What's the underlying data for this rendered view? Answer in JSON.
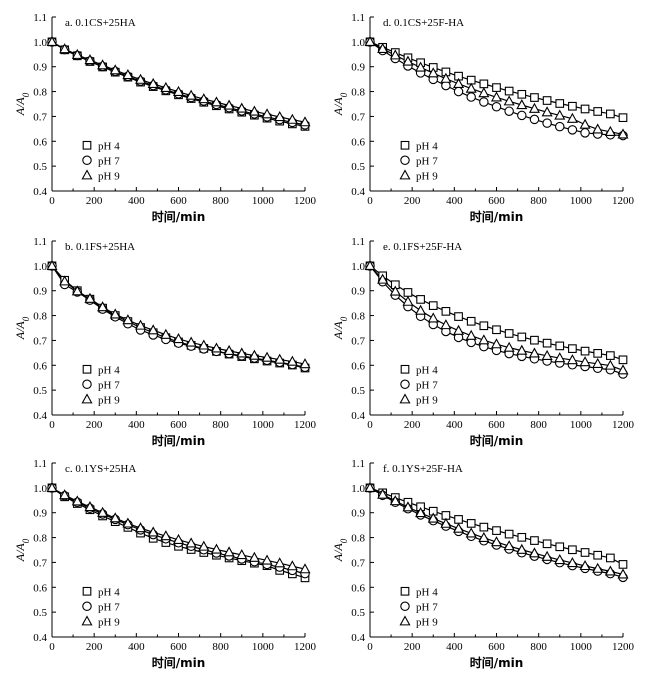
{
  "chart_data": [
    {
      "type": "scatter",
      "panel": "a",
      "title": "a. 0.1CS+25HA",
      "xlabel": "时间/min",
      "ylabel": "A/A0",
      "xlim": [
        0,
        1200
      ],
      "ylim": [
        0.4,
        1.1
      ],
      "xticks": [
        0,
        200,
        400,
        600,
        800,
        1000,
        1200
      ],
      "yticks": [
        0.4,
        0.5,
        0.6,
        0.7,
        0.8,
        0.9,
        1.0,
        1.1
      ],
      "legend_position": "lower-left",
      "x": [
        0,
        60,
        120,
        180,
        240,
        300,
        360,
        420,
        480,
        540,
        600,
        660,
        720,
        780,
        840,
        900,
        960,
        1020,
        1080,
        1140,
        1200
      ],
      "series": [
        {
          "name": "pH 4",
          "marker": "square",
          "values": [
            1.0,
            0.968,
            0.944,
            0.921,
            0.899,
            0.878,
            0.858,
            0.838,
            0.82,
            0.803,
            0.787,
            0.772,
            0.757,
            0.743,
            0.73,
            0.717,
            0.705,
            0.693,
            0.681,
            0.67,
            0.66
          ]
        },
        {
          "name": "pH 7",
          "marker": "circle",
          "values": [
            1.0,
            0.969,
            0.945,
            0.923,
            0.901,
            0.881,
            0.861,
            0.842,
            0.824,
            0.807,
            0.791,
            0.776,
            0.762,
            0.748,
            0.735,
            0.722,
            0.71,
            0.698,
            0.687,
            0.676,
            0.666
          ]
        },
        {
          "name": "pH 9",
          "marker": "triangle",
          "values": [
            1.0,
            0.971,
            0.948,
            0.927,
            0.906,
            0.886,
            0.867,
            0.848,
            0.831,
            0.815,
            0.799,
            0.784,
            0.77,
            0.757,
            0.744,
            0.732,
            0.72,
            0.709,
            0.698,
            0.687,
            0.677
          ]
        }
      ]
    },
    {
      "type": "scatter",
      "panel": "b",
      "title": "b. 0.1FS+25HA",
      "xlabel": "时间/min",
      "ylabel": "A/A0",
      "xlim": [
        0,
        1200
      ],
      "ylim": [
        0.4,
        1.1
      ],
      "xticks": [
        0,
        200,
        400,
        600,
        800,
        1000,
        1200
      ],
      "yticks": [
        0.4,
        0.5,
        0.6,
        0.7,
        0.8,
        0.9,
        1.0,
        1.1
      ],
      "legend_position": "lower-left",
      "x": [
        0,
        60,
        120,
        180,
        240,
        300,
        360,
        420,
        480,
        540,
        600,
        660,
        720,
        780,
        840,
        900,
        960,
        1020,
        1080,
        1140,
        1200
      ],
      "series": [
        {
          "name": "pH 4",
          "marker": "square",
          "values": [
            1.0,
            0.942,
            0.9,
            0.866,
            0.83,
            0.8,
            0.776,
            0.752,
            0.731,
            0.711,
            0.694,
            0.68,
            0.668,
            0.656,
            0.645,
            0.635,
            0.626,
            0.617,
            0.609,
            0.601,
            0.589
          ]
        },
        {
          "name": "pH 7",
          "marker": "circle",
          "values": [
            1.0,
            0.925,
            0.895,
            0.862,
            0.826,
            0.795,
            0.767,
            0.742,
            0.722,
            0.704,
            0.689,
            0.677,
            0.666,
            0.656,
            0.647,
            0.638,
            0.629,
            0.62,
            0.612,
            0.603,
            0.592
          ]
        },
        {
          "name": "pH 9",
          "marker": "triangle",
          "values": [
            1.0,
            0.938,
            0.898,
            0.868,
            0.834,
            0.805,
            0.782,
            0.76,
            0.741,
            0.723,
            0.706,
            0.692,
            0.68,
            0.668,
            0.658,
            0.648,
            0.639,
            0.631,
            0.623,
            0.615,
            0.605
          ]
        }
      ]
    },
    {
      "type": "scatter",
      "panel": "c",
      "title": "c. 0.1YS+25HA",
      "xlabel": "时间/min",
      "ylabel": "A/A0",
      "xlim": [
        0,
        1200
      ],
      "ylim": [
        0.4,
        1.1
      ],
      "xticks": [
        0,
        200,
        400,
        600,
        800,
        1000,
        1200
      ],
      "yticks": [
        0.4,
        0.5,
        0.6,
        0.7,
        0.8,
        0.9,
        1.0,
        1.1
      ],
      "legend_position": "lower-left",
      "x": [
        0,
        60,
        120,
        180,
        240,
        300,
        360,
        420,
        480,
        540,
        600,
        660,
        720,
        780,
        840,
        900,
        960,
        1020,
        1080,
        1140,
        1200
      ],
      "series": [
        {
          "name": "pH 4",
          "marker": "square",
          "values": [
            1.0,
            0.964,
            0.937,
            0.912,
            0.887,
            0.864,
            0.841,
            0.818,
            0.797,
            0.78,
            0.765,
            0.752,
            0.74,
            0.729,
            0.718,
            0.707,
            0.697,
            0.687,
            0.668,
            0.654,
            0.638
          ]
        },
        {
          "name": "pH 7",
          "marker": "circle",
          "values": [
            1.0,
            0.968,
            0.942,
            0.918,
            0.895,
            0.873,
            0.852,
            0.831,
            0.812,
            0.795,
            0.779,
            0.765,
            0.751,
            0.738,
            0.726,
            0.714,
            0.703,
            0.692,
            0.681,
            0.668,
            0.655
          ]
        },
        {
          "name": "pH 9",
          "marker": "triangle",
          "values": [
            1.0,
            0.971,
            0.946,
            0.923,
            0.9,
            0.878,
            0.857,
            0.838,
            0.821,
            0.806,
            0.791,
            0.777,
            0.764,
            0.752,
            0.741,
            0.73,
            0.719,
            0.708,
            0.697,
            0.685,
            0.673
          ]
        }
      ]
    },
    {
      "type": "scatter",
      "panel": "d",
      "title": "d. 0.1CS+25F-HA",
      "xlabel": "时间/min",
      "ylabel": "A/A0",
      "xlim": [
        0,
        1200
      ],
      "ylim": [
        0.4,
        1.1
      ],
      "xticks": [
        0,
        200,
        400,
        600,
        800,
        1000,
        1200
      ],
      "yticks": [
        0.4,
        0.5,
        0.6,
        0.7,
        0.8,
        0.9,
        1.0,
        1.1
      ],
      "legend_position": "lower-left",
      "x": [
        0,
        60,
        120,
        180,
        240,
        300,
        360,
        420,
        480,
        540,
        600,
        660,
        720,
        780,
        840,
        900,
        960,
        1020,
        1080,
        1140,
        1200
      ],
      "series": [
        {
          "name": "pH 4",
          "marker": "square",
          "values": [
            1.0,
            0.978,
            0.957,
            0.936,
            0.916,
            0.897,
            0.879,
            0.862,
            0.846,
            0.831,
            0.816,
            0.802,
            0.789,
            0.776,
            0.764,
            0.752,
            0.741,
            0.73,
            0.72,
            0.71,
            0.695
          ]
        },
        {
          "name": "pH 7",
          "marker": "circle",
          "values": [
            1.0,
            0.965,
            0.933,
            0.903,
            0.875,
            0.849,
            0.824,
            0.8,
            0.778,
            0.758,
            0.739,
            0.721,
            0.704,
            0.688,
            0.673,
            0.659,
            0.646,
            0.634,
            0.629,
            0.626,
            0.623
          ]
        },
        {
          "name": "pH 9",
          "marker": "triangle",
          "values": [
            1.0,
            0.972,
            0.946,
            0.921,
            0.897,
            0.874,
            0.852,
            0.831,
            0.812,
            0.794,
            0.777,
            0.761,
            0.746,
            0.731,
            0.717,
            0.704,
            0.691,
            0.667,
            0.648,
            0.638,
            0.628
          ]
        }
      ]
    },
    {
      "type": "scatter",
      "panel": "e",
      "title": "e. 0.1FS+25F-HA",
      "xlabel": "时间/min",
      "ylabel": "A/A0",
      "xlim": [
        0,
        1200
      ],
      "ylim": [
        0.4,
        1.1
      ],
      "xticks": [
        0,
        200,
        400,
        600,
        800,
        1000,
        1200
      ],
      "yticks": [
        0.4,
        0.5,
        0.6,
        0.7,
        0.8,
        0.9,
        1.0,
        1.1
      ],
      "legend_position": "lower-left",
      "x": [
        0,
        60,
        120,
        180,
        240,
        300,
        360,
        420,
        480,
        540,
        600,
        660,
        720,
        780,
        840,
        900,
        960,
        1020,
        1080,
        1140,
        1200
      ],
      "series": [
        {
          "name": "pH 4",
          "marker": "square",
          "values": [
            1.0,
            0.96,
            0.924,
            0.893,
            0.865,
            0.84,
            0.817,
            0.796,
            0.777,
            0.759,
            0.743,
            0.728,
            0.714,
            0.701,
            0.689,
            0.678,
            0.667,
            0.657,
            0.648,
            0.639,
            0.622
          ]
        },
        {
          "name": "pH 7",
          "marker": "circle",
          "values": [
            1.0,
            0.936,
            0.882,
            0.836,
            0.797,
            0.764,
            0.736,
            0.712,
            0.692,
            0.675,
            0.66,
            0.647,
            0.636,
            0.626,
            0.617,
            0.609,
            0.602,
            0.595,
            0.588,
            0.582,
            0.565
          ]
        },
        {
          "name": "pH 9",
          "marker": "triangle",
          "values": [
            1.0,
            0.945,
            0.897,
            0.856,
            0.82,
            0.789,
            0.762,
            0.739,
            0.719,
            0.701,
            0.685,
            0.671,
            0.659,
            0.648,
            0.638,
            0.629,
            0.621,
            0.613,
            0.606,
            0.599,
            0.58
          ]
        }
      ]
    },
    {
      "type": "scatter",
      "panel": "f",
      "title": "f. 0.1YS+25F-HA",
      "xlabel": "时间/min",
      "ylabel": "A/A0",
      "xlim": [
        0,
        1200
      ],
      "ylim": [
        0.4,
        1.1
      ],
      "xticks": [
        0,
        200,
        400,
        600,
        800,
        1000,
        1200
      ],
      "yticks": [
        0.4,
        0.5,
        0.6,
        0.7,
        0.8,
        0.9,
        1.0,
        1.1
      ],
      "legend_position": "lower-left",
      "x": [
        0,
        60,
        120,
        180,
        240,
        300,
        360,
        420,
        480,
        540,
        600,
        660,
        720,
        780,
        840,
        900,
        960,
        1020,
        1080,
        1140,
        1200
      ],
      "series": [
        {
          "name": "pH 4",
          "marker": "square",
          "values": [
            1.0,
            0.98,
            0.961,
            0.942,
            0.924,
            0.906,
            0.889,
            0.873,
            0.857,
            0.842,
            0.828,
            0.814,
            0.801,
            0.788,
            0.775,
            0.763,
            0.751,
            0.74,
            0.729,
            0.718,
            0.692
          ]
        },
        {
          "name": "pH 7",
          "marker": "circle",
          "values": [
            1.0,
            0.97,
            0.942,
            0.916,
            0.891,
            0.868,
            0.846,
            0.825,
            0.805,
            0.787,
            0.77,
            0.754,
            0.739,
            0.725,
            0.712,
            0.699,
            0.687,
            0.676,
            0.665,
            0.655,
            0.64
          ]
        },
        {
          "name": "pH 9",
          "marker": "triangle",
          "values": [
            1.0,
            0.973,
            0.947,
            0.922,
            0.899,
            0.877,
            0.856,
            0.836,
            0.817,
            0.799,
            0.782,
            0.766,
            0.751,
            0.737,
            0.723,
            0.71,
            0.698,
            0.686,
            0.675,
            0.664,
            0.652
          ]
        }
      ]
    }
  ]
}
